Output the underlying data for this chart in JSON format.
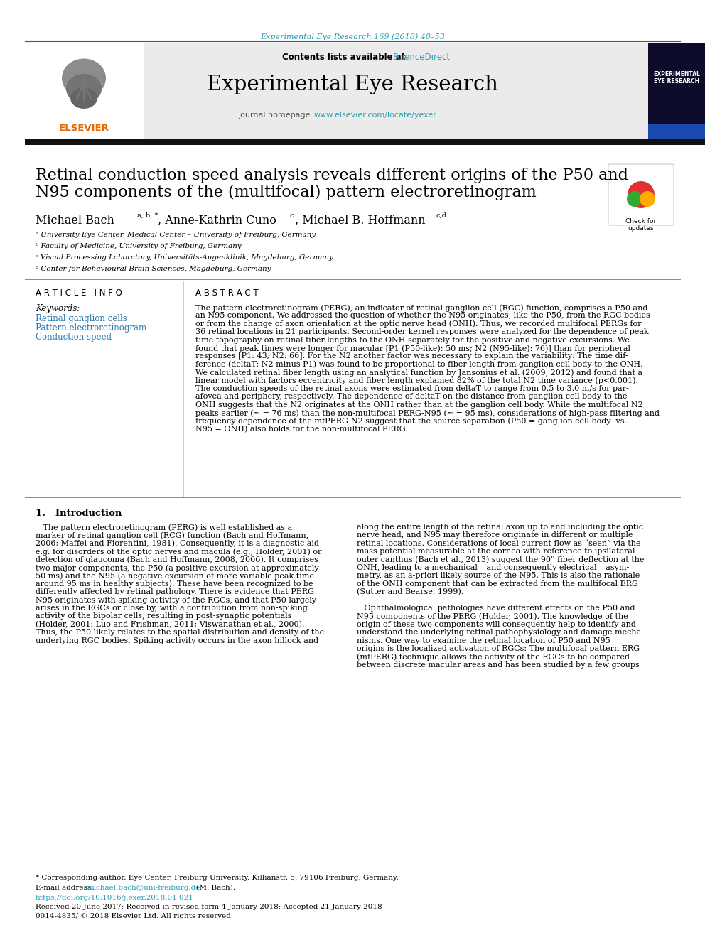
{
  "journal_ref": "Experimental Eye Research 169 (2018) 48–53",
  "journal_name": "Experimental Eye Research",
  "contents_prefix": "Contents lists available at ",
  "sciencedirect_text": "ScienceDirect",
  "homepage_prefix": "journal homepage: ",
  "homepage_url": "www.elsevier.com/locate/yexer",
  "title_line1": "Retinal conduction speed analysis reveals different origins of the P50 and",
  "title_line2": "N95 components of the (multifocal) pattern electroretinogram",
  "author1": "Michael Bach",
  "author1_sup": "a, b, *",
  "author2": ", Anne-Kathrin Cuno",
  "author2_sup": "c",
  "author3": ", Michael B. Hoffmann",
  "author3_sup": "c,d",
  "affil_a": "ᵃ University Eye Center, Medical Center – University of Freiburg, Germany",
  "affil_b": "ᵇ Faculty of Medicine, University of Freiburg, Germany",
  "affil_c": "ᶜ Visual Processing Laboratory, Universitäts-Augenklinik, Magdeburg, Germany",
  "affil_d": "ᵈ Center for Behavioural Brain Sciences, Magdeburg, Germany",
  "article_info_title": "A R T I C L E   I N F O",
  "keywords_label": "Keywords:",
  "kw1": "Retinal ganglion cells",
  "kw2": "Pattern electroretinogram",
  "kw3": "Conduction speed",
  "abstract_title": "A B S T R A C T",
  "abstract_lines": [
    "The pattern electroretinogram (PERG), an indicator of retinal ganglion cell (RGC) function, comprises a P50 and",
    "an N95 component. We addressed the question of whether the N95 originates, like the P50, from the RGC bodies",
    "or from the change of axon orientation at the optic nerve head (ONH). Thus, we recorded multifocal PERGs for",
    "36 retinal locations in 21 participants. Second-order kernel responses were analyzed for the dependence of peak",
    "time topography on retinal fiber lengths to the ONH separately for the positive and negative excursions. We",
    "found that peak times were longer for macular [P1 (P50-like): 50 ms; N2 (N95-like): 76)] than for peripheral",
    "responses [P1: 43; N2: 66]. For the N2 another factor was necessary to explain the variability: The time dif-",
    "ference (deltaT: N2 minus P1) was found to be proportional to fiber length from ganglion cell body to the ONH.",
    "We calculated retinal fiber length using an analytical function by Jansonius et al. (2009, 2012) and found that a",
    "linear model with factors eccentricity and fiber length explained 82% of the total N2 time variance (p<0.001).",
    "The conduction speeds of the retinal axons were estimated from deltaT to range from 0.5 to 3.0 m/s for par-",
    "afovea and periphery, respectively. The dependence of deltaT on the distance from ganglion cell body to the",
    "ONH suggests that the N2 originates at the ONH rather than at the ganglion cell body. While the multifocal N2",
    "peaks earlier (≈ = 76 ms) than the non-multifocal PERG-N95 (≈ = 95 ms), considerations of high-pass filtering and",
    "frequency dependence of the mfPERG-N2 suggest that the source separation (P50 = ganglion cell body  vs.",
    "N95 = ONH) also holds for the non-multifocal PERG."
  ],
  "section1_title": "1.   Introduction",
  "intro_col1_lines": [
    "   The pattern electroretinogram (PERG) is well established as a",
    "marker of retinal ganglion cell (RCG) function (Bach and Hoffmann,",
    "2006; Maffei and Fiorentini, 1981). Consequently, it is a diagnostic aid",
    "e.g. for disorders of the optic nerves and macula (e.g., Holder, 2001) or",
    "detection of glaucoma (Bach and Hoffmann, 2008, 2006). It comprises",
    "two major components, the P50 (a positive excursion at approximately",
    "50 ms) and the N95 (a negative excursion of more variable peak time",
    "around 95 ms in healthy subjects). These have been recognized to be",
    "differently affected by retinal pathology. There is evidence that PERG",
    "N95 originates with spiking activity of the RGCs, and that P50 largely",
    "arises in the RGCs or close by, with a contribution from non-spiking",
    "activity of the bipolar cells, resulting in post-synaptic potentials",
    "(Holder, 2001; Luo and Frishman, 2011; Viswanathan et al., 2000).",
    "Thus, the P50 likely relates to the spatial distribution and density of the",
    "underlying RGC bodies. Spiking activity occurs in the axon hillock and"
  ],
  "intro_col2_lines": [
    "along the entire length of the retinal axon up to and including the optic",
    "nerve head, and N95 may therefore originate in different or multiple",
    "retinal locations. Considerations of local current flow as “seen” via the",
    "mass potential measurable at the cornea with reference to ipsilateral",
    "outer canthus (Bach et al., 2013) suggest the 90° fiber deflection at the",
    "ONH, leading to a mechanical – and consequently electrical – asym-",
    "metry, as an a-priori likely source of the N95. This is also the rationale",
    "of the ONH component that can be extracted from the multifocal ERG",
    "(Sutter and Bearse, 1999).",
    "",
    "   Ophthalmological pathologies have different effects on the P50 and",
    "N95 components of the PERG (Holder, 2001). The knowledge of the",
    "origin of these two components will consequently help to identify and",
    "understand the underlying retinal pathophysiology and damage mecha-",
    "nisms. One way to examine the retinal location of P50 and N95",
    "origins is the localized activation of RGCs: The multifocal pattern ERG",
    "(mfPERG) technique allows the activity of the RGCs to be compared",
    "between discrete macular areas and has been studied by a few groups"
  ],
  "footnote1": "* Corresponding author. Eye Center, Freiburg University, Killianstr. 5, 79106 Freiburg, Germany.",
  "footnote2_pre": "E-mail address: ",
  "footnote2_email": "michael.bach@uni-freiburg.de",
  "footnote2_post": " (M. Bach).",
  "doi_line": "https://doi.org/10.1016/j.exer.2018.01.021",
  "received_line": "Received 20 June 2017; Received in revised form 4 January 2018; Accepted 21 January 2018",
  "copyright_line": "0014-4835/ © 2018 Elsevier Ltd. All rights reserved.",
  "link_color": "#2B9EB3",
  "kw_color": "#2B7AB3",
  "header_bg": "#EBEBEB",
  "orange_color": "#E86800",
  "dark_bar": "#111111"
}
